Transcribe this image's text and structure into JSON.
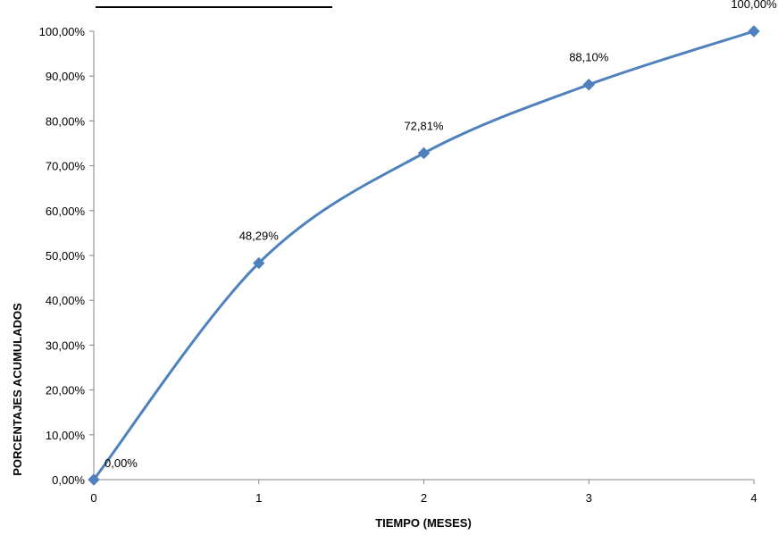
{
  "chart_data": {
    "type": "line",
    "title": "",
    "xlabel": "TIEMPO (MESES)",
    "ylabel": "PORCENTAJES ACUMULADOS",
    "x": [
      0,
      1,
      2,
      3,
      4
    ],
    "x_tick_labels": [
      "0",
      "1",
      "2",
      "3",
      "4"
    ],
    "xlim": [
      0,
      4
    ],
    "ylim": [
      0,
      100
    ],
    "y_ticks": [
      0,
      10,
      20,
      30,
      40,
      50,
      60,
      70,
      80,
      90,
      100
    ],
    "y_tick_labels": [
      "0,00%",
      "10,00%",
      "20,00%",
      "30,00%",
      "40,00%",
      "50,00%",
      "60,00%",
      "70,00%",
      "80,00%",
      "90,00%",
      "100,00%"
    ],
    "series": [
      {
        "values": [
          0,
          48.29,
          72.81,
          88.1,
          100
        ],
        "data_labels": [
          "0,00%",
          "48,29%",
          "72,81%",
          "88,10%",
          "100,00%"
        ],
        "color": "#4F81BD",
        "marker": "diamond",
        "smooth": true
      }
    ],
    "grid": false,
    "legend": "none"
  }
}
